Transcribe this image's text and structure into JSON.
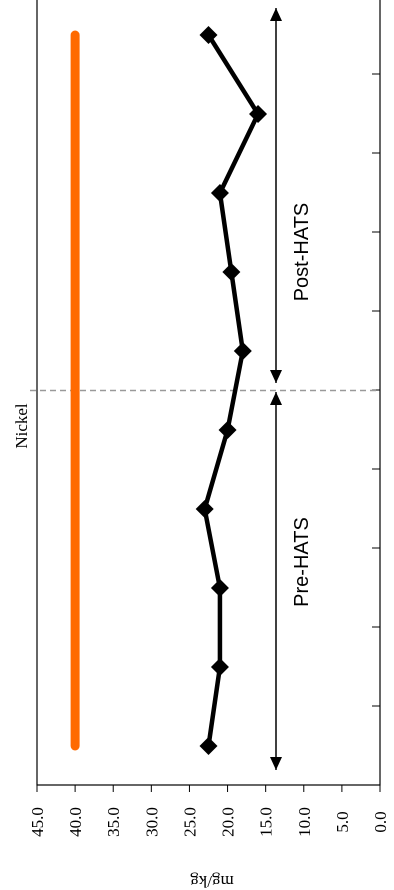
{
  "chart_data": {
    "type": "line",
    "orientation": "rotated-90",
    "title": "Nickel",
    "ylabel": "mg/kg",
    "ylim": [
      0,
      45
    ],
    "ytick_labels": [
      "0.0",
      "5.0",
      "10.0",
      "15.0",
      "20.0",
      "25.0",
      "30.0",
      "35.0",
      "40.0",
      "45.0"
    ],
    "x_count": 10,
    "series": [
      {
        "values": [
          22.5,
          21.0,
          21.0,
          23.0,
          20.0,
          18.0,
          19.5,
          21.0,
          16.0,
          22.5
        ],
        "color": "#000000",
        "marker": "diamond"
      },
      {
        "values": [
          40.0,
          40.0,
          40.0,
          40.0,
          40.0,
          40.0,
          40.0,
          40.0,
          40.0,
          40.0
        ],
        "color": "#ff6a00",
        "role": "reference line"
      }
    ],
    "divider_after_index": 4,
    "periods": [
      {
        "label": "Pre-HATS",
        "from_index": 0,
        "to_index": 4
      },
      {
        "label": "Post-HATS",
        "from_index": 5,
        "to_index": 9
      }
    ],
    "grid": false,
    "legend": "none"
  }
}
